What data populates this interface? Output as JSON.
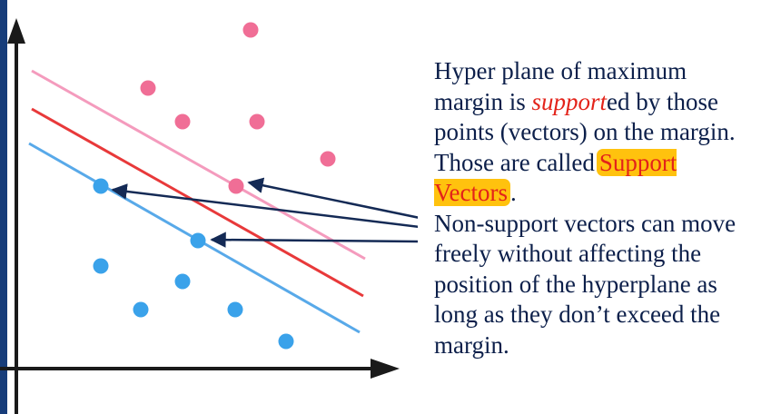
{
  "colors": {
    "band": "#173d7a",
    "axis": "#1a1a1a",
    "pink_points": "#f06e96",
    "blue_points": "#3aa2ea",
    "pink_margin": "#f49bbd",
    "red_hyperplane": "#e8393a",
    "blue_margin": "#58a9e9",
    "arrows": "#142a55",
    "text": "#0c1f4a",
    "emphasis": "#e3231a",
    "highlight": "#ffc20e"
  },
  "explanation": {
    "part1": "Hyper plane of maximum margin is ",
    "support_prefix": "support",
    "support_suffix": "ed by those points (vectors) on the margin. Those are called",
    "support_vectors_label": "Support Vectors",
    "period": ".",
    "part2": "Non-support vectors can move freely without affecting the position of the hyperplane as long as they don’t exceed the margin."
  }
}
